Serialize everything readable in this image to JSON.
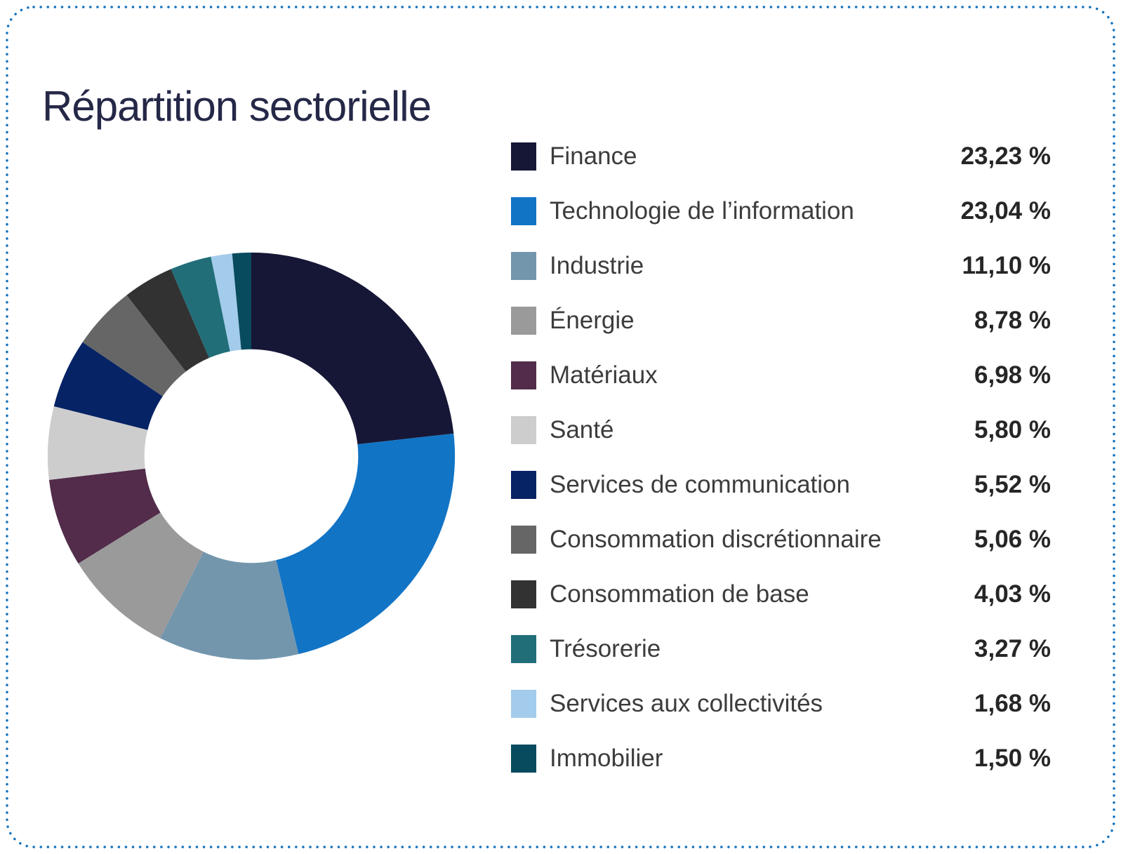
{
  "header": {
    "title": "Répartition sectorielle"
  },
  "colors": {
    "border_accent": "#1371bd",
    "title_text": "#252847",
    "label_text": "#3c3c3c",
    "value_text": "#262626",
    "background": "#ffffff"
  },
  "chart_data": {
    "type": "pie",
    "subtype": "donut",
    "title": "Répartition sectorielle",
    "legend_position": "right",
    "inner_radius_ratio": 0.525,
    "start_angle_deg": 0,
    "direction": "clockwise",
    "categories": [
      "Finance",
      "Technologie de l’information",
      "Industrie",
      "Énergie",
      "Matériaux",
      "Santé",
      "Services de communication",
      "Consommation discrétionnaire",
      "Consommation de base",
      "Trésorerie",
      "Services aux collectivités",
      "Immobilier"
    ],
    "values": [
      23.23,
      23.04,
      11.1,
      8.78,
      6.98,
      5.8,
      5.52,
      5.06,
      4.03,
      3.27,
      1.68,
      1.5
    ],
    "display_values": [
      "23,23 %",
      "23,04 %",
      "11,10 %",
      "8,78 %",
      "6,98 %",
      "5,80 %",
      "5,52 %",
      "5,06 %",
      "4,03 %",
      "3,27 %",
      "1,68 %",
      "1,50 %"
    ],
    "colors": [
      "#161736",
      "#1274c5",
      "#7396ad",
      "#9a9a9a",
      "#522c4a",
      "#cdcdcd",
      "#062365",
      "#666666",
      "#323232",
      "#216e79",
      "#a3cbeb",
      "#084b5f"
    ]
  }
}
